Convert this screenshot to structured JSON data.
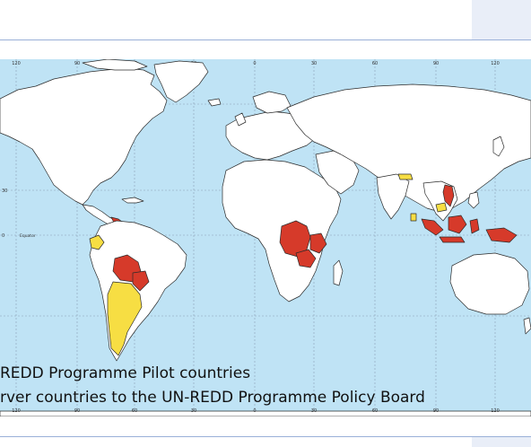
{
  "map": {
    "colors": {
      "ocean": "#bfe3f5",
      "land": "#ffffff",
      "pilot": "#d63a2a",
      "observer": "#f7de43",
      "border": "#2b2b2b",
      "grid": "#8aa0b5"
    },
    "top_lon_labels": [
      "120",
      "90",
      "60",
      "30",
      "0",
      "30",
      "60",
      "90",
      "120"
    ],
    "bottom_lon_labels": [
      "120",
      "90",
      "60",
      "30",
      "0",
      "30",
      "60",
      "90",
      "120"
    ],
    "left_lat_labels": [
      "60",
      "30",
      "0"
    ],
    "ocean_label": "Equator"
  },
  "legend": {
    "pilot_text": "REDD Programme Pilot countries",
    "observer_text": "rver countries to the UN-REDD Programme Policy Board"
  }
}
